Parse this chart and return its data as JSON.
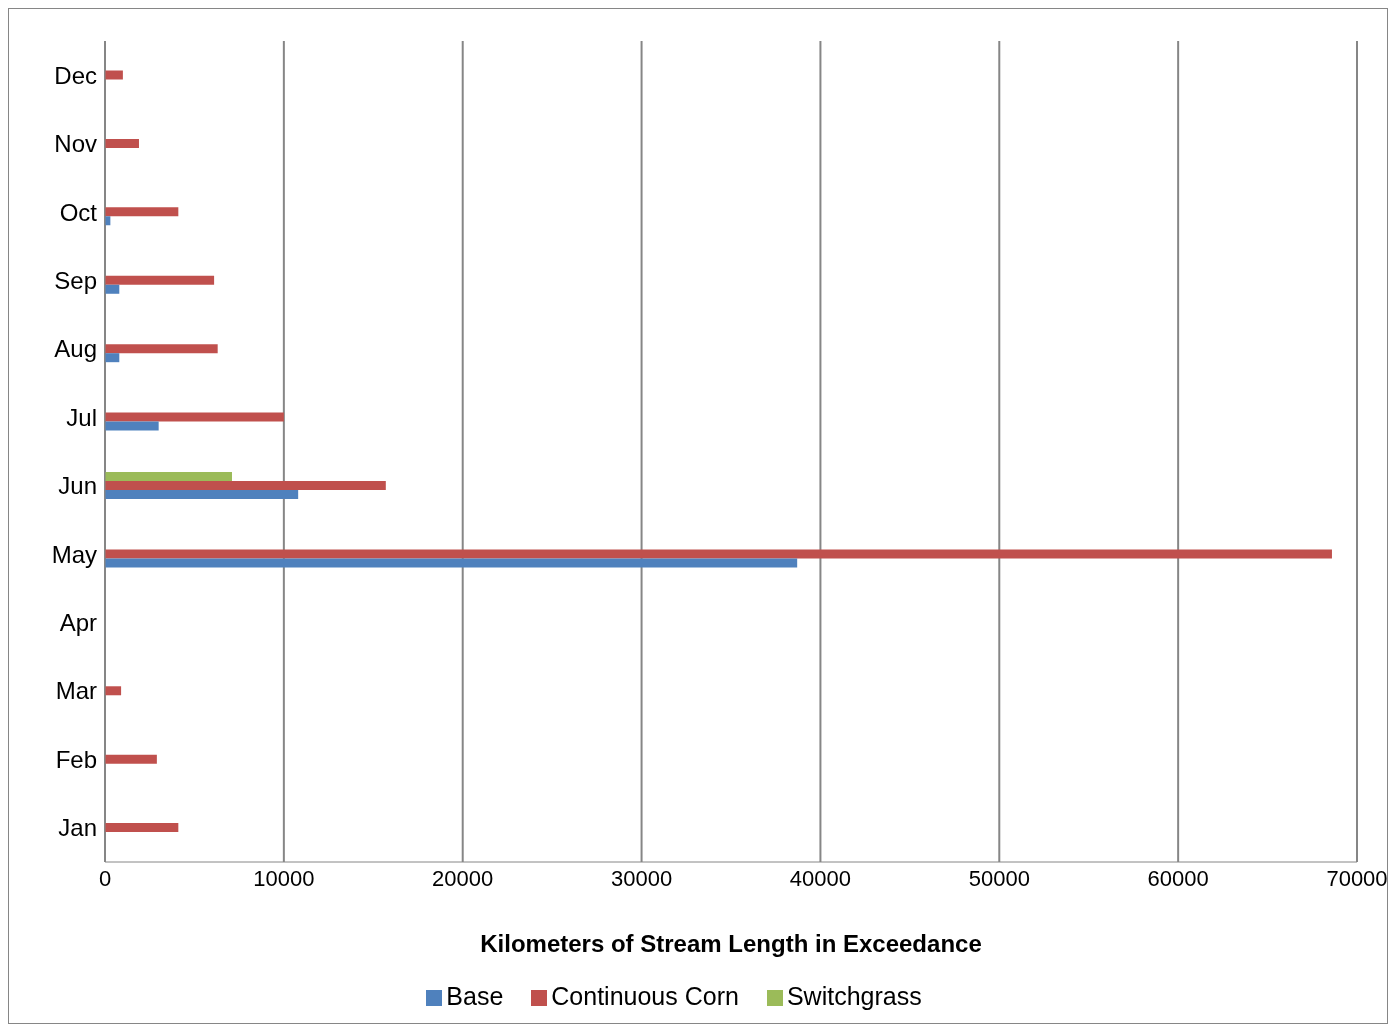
{
  "chart_data": {
    "type": "bar",
    "orientation": "horizontal",
    "xlabel": "Kilometers of Stream Length in Exceedance",
    "categories": [
      "Dec",
      "Nov",
      "Oct",
      "Sep",
      "Aug",
      "Jul",
      "Jun",
      "May",
      "Apr",
      "Mar",
      "Feb",
      "Jan"
    ],
    "series": [
      {
        "name": "Switchgrass",
        "color": "#9bbb59",
        "values": [
          0,
          0,
          0,
          0,
          0,
          0,
          7100,
          0,
          0,
          0,
          0,
          0
        ]
      },
      {
        "name": "Continuous Corn",
        "color": "#c0504d",
        "values": [
          1000,
          1900,
          4100,
          6100,
          6300,
          10000,
          15700,
          68600,
          0,
          900,
          2900,
          4100
        ]
      },
      {
        "name": "Base",
        "color": "#4f81bd",
        "values": [
          0,
          0,
          300,
          800,
          800,
          3000,
          10800,
          38700,
          0,
          0,
          0,
          0
        ]
      }
    ],
    "xlim": [
      0,
      70000
    ],
    "xticks": [
      0,
      10000,
      20000,
      30000,
      40000,
      50000,
      60000,
      70000
    ],
    "grid": "x",
    "legend": "bottom"
  }
}
